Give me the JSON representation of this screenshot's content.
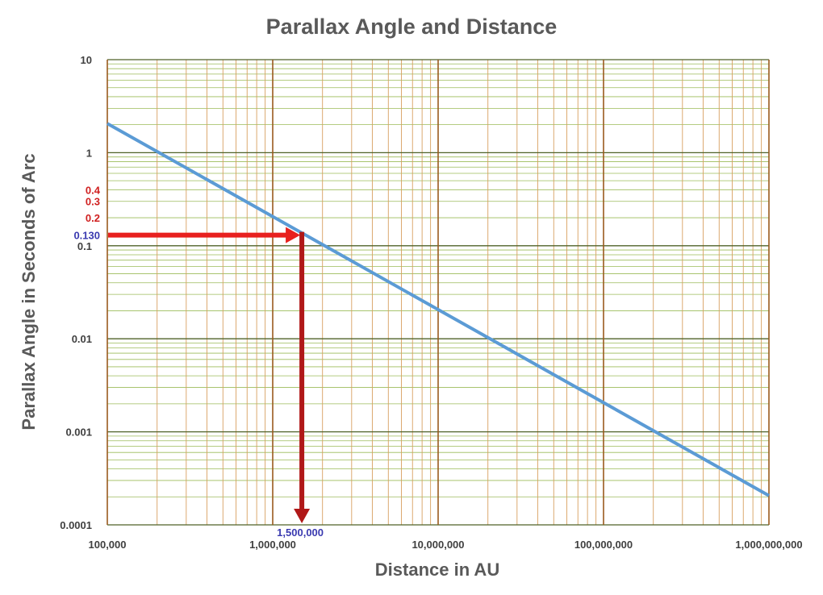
{
  "chart_data": {
    "type": "line",
    "title": "Parallax Angle and Distance",
    "xlabel": "Distance in AU",
    "ylabel": "Parallax Angle in Seconds of Arc",
    "x_scale": "log",
    "y_scale": "log",
    "xlim": [
      100000,
      1000000000
    ],
    "ylim": [
      0.0001,
      10
    ],
    "grid": true,
    "x_ticks": [
      "100,000",
      "1,000,000",
      "10,000,000",
      "100,000,000",
      "1,000,000,000"
    ],
    "y_ticks": [
      "0.0001",
      "0.001",
      "0.01",
      "0.1",
      "1",
      "10"
    ],
    "series": [
      {
        "x": [
          100000,
          1000000000
        ],
        "y": [
          2.06,
          0.000206
        ]
      }
    ],
    "annotations": {
      "extra_y_labels": [
        "0.4",
        "0.3",
        "0.2"
      ],
      "marker_y_label": "0.130",
      "marker_x_label": "1,500,000",
      "marker_x": 1500000,
      "marker_y": 0.13
    },
    "colors": {
      "line": "#5b9bd5",
      "arrow_horizontal": "#e8201e",
      "arrow_vertical": "#b01818",
      "grid_y_major": "#4f6228",
      "grid_y_minor": "#9bbb59",
      "grid_x_major": "#9a5a1e",
      "grid_x_minor": "#d8a060",
      "red_labels": "#d02020",
      "blue_labels": "#3a3ab0"
    }
  }
}
